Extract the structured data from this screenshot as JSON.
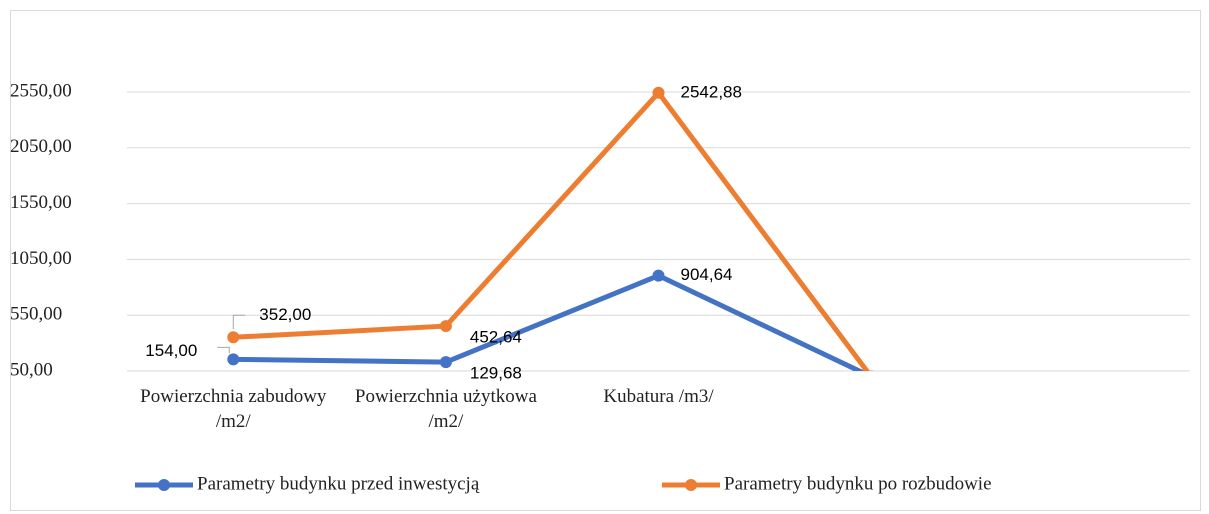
{
  "chart_data": {
    "type": "line",
    "categories": [
      "Powierzchnia zabudowy /m2/",
      "Powierzchnia użytkowa /m2/",
      "Kubatura /m3/",
      null,
      null
    ],
    "series": [
      {
        "name": "Parametry budynku przed inwestycją",
        "color": "#4472c4",
        "values": [
          154,
          129.68,
          904.64,
          0,
          null
        ],
        "value_labels": [
          "154,00",
          "129,68",
          "904,64",
          null,
          null
        ]
      },
      {
        "name": "Parametry budynku po rozbudowie",
        "color": "#ed7d31",
        "values": [
          352,
          452.64,
          2542.88,
          0,
          null
        ],
        "value_labels": [
          "352,00",
          "452,64",
          "2542,88",
          null,
          null
        ]
      }
    ],
    "ylim": [
      50,
      2550
    ],
    "yticks": [
      {
        "value": 50,
        "label": "50,00"
      },
      {
        "value": 550,
        "label": "550,00"
      },
      {
        "value": 1050,
        "label": "1050,00"
      },
      {
        "value": 1550,
        "label": "1550,00"
      },
      {
        "value": 2050,
        "label": "2050,00"
      },
      {
        "value": 2550,
        "label": "2550,00"
      }
    ],
    "grid": true,
    "legend": "bottom"
  }
}
